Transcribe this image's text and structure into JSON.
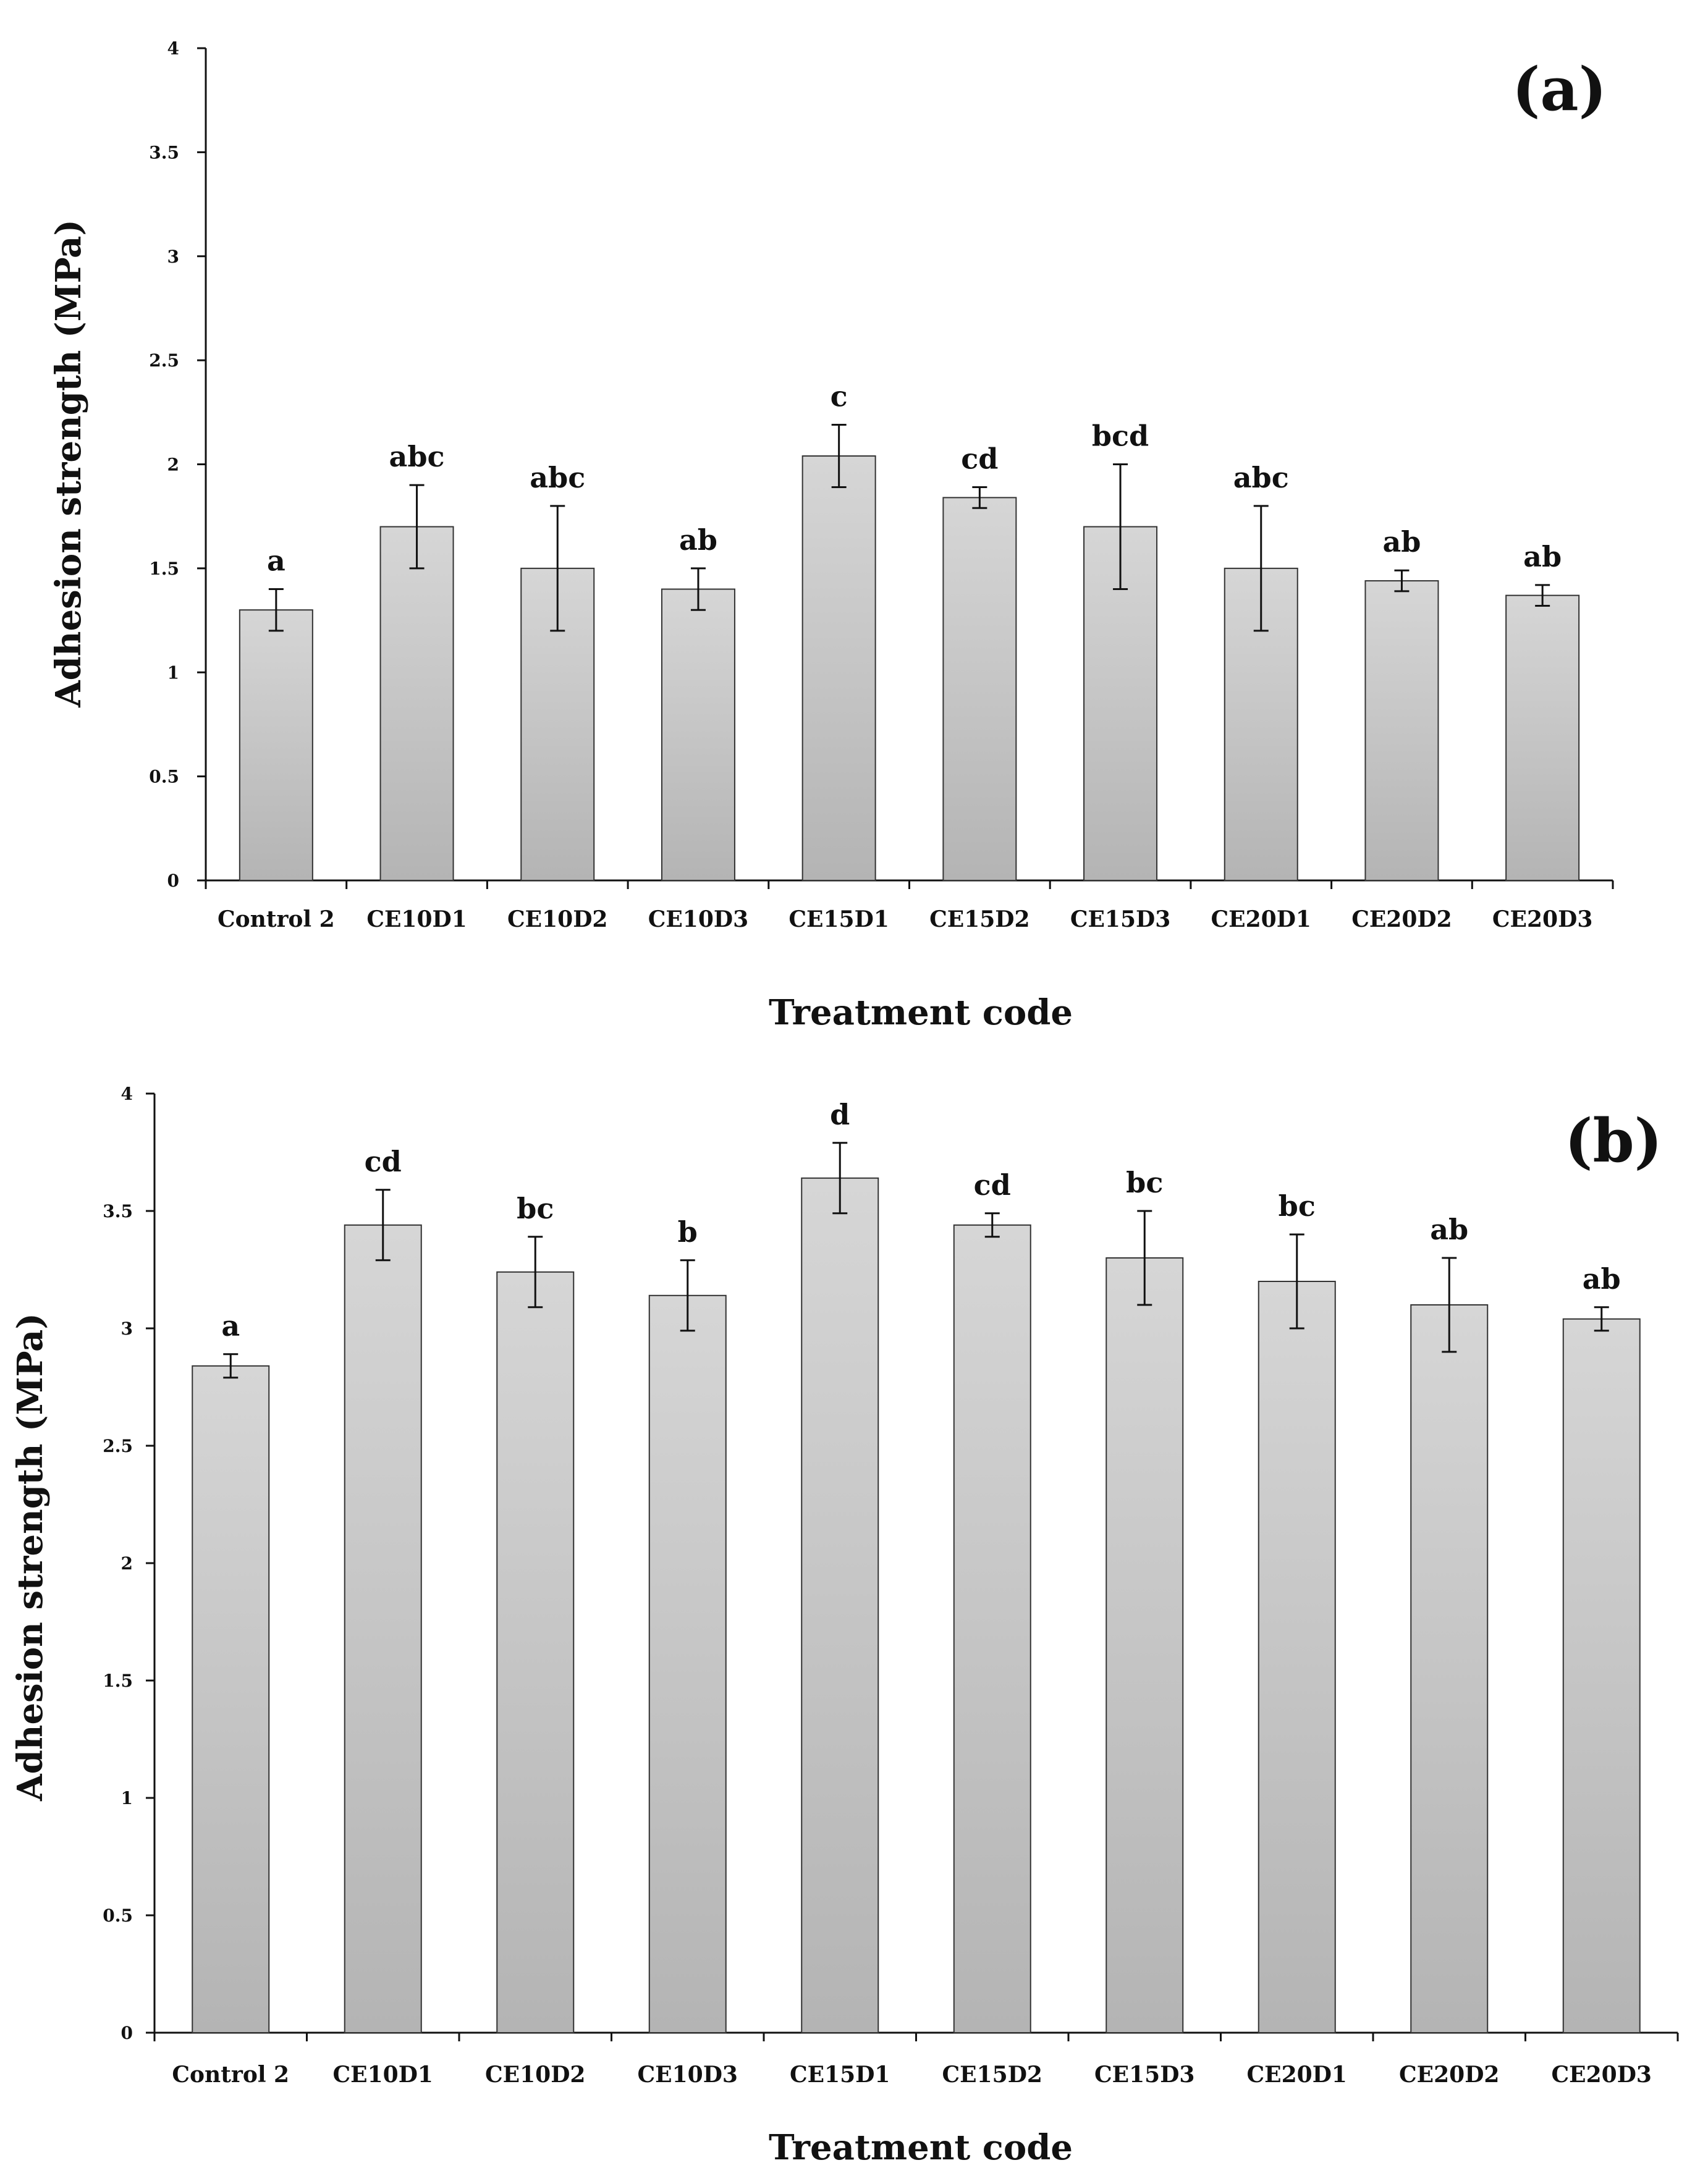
{
  "colors": {
    "bar_fill_top": "#d6d6d6",
    "bar_fill_bottom": "#b4b4b4",
    "bar_stroke": "#333333",
    "axis": "#111111",
    "text": "#111111"
  },
  "chart_data": [
    {
      "type": "bar",
      "panel_label": "(a)",
      "title": "",
      "xlabel": "Treatment code",
      "ylabel": "Adhesion strength  (MPa)",
      "ylim": [
        0,
        4
      ],
      "yticks": [
        "0",
        "0.5",
        "1",
        "1.5",
        "2",
        "2.5",
        "3",
        "3.5",
        "4"
      ],
      "ytick_values": [
        0,
        0.5,
        1,
        1.5,
        2,
        2.5,
        3,
        3.5,
        4
      ],
      "grid": false,
      "legend": "none",
      "categories": [
        "Control 2",
        "CE10D1",
        "CE10D2",
        "CE10D3",
        "CE15D1",
        "CE15D2",
        "CE15D3",
        "CE20D1",
        "CE20D2",
        "CE20D3"
      ],
      "values": [
        1.3,
        1.7,
        1.5,
        1.4,
        2.04,
        1.84,
        1.7,
        1.5,
        1.44,
        1.37
      ],
      "errors": [
        0.1,
        0.2,
        0.3,
        0.1,
        0.15,
        0.05,
        0.3,
        0.3,
        0.05,
        0.05
      ],
      "significance_letters": [
        "a",
        "abc",
        "abc",
        "ab",
        "c",
        "cd",
        "bcd",
        "abc",
        "ab",
        "ab"
      ]
    },
    {
      "type": "bar",
      "panel_label": "(b)",
      "title": "",
      "xlabel": "Treatment code",
      "ylabel": "Adhesion strength  (MPa)",
      "ylim": [
        0,
        4
      ],
      "yticks": [
        "0",
        "0.5",
        "1",
        "1.5",
        "2",
        "2.5",
        "3",
        "3.5",
        "4"
      ],
      "ytick_values": [
        0,
        0.5,
        1,
        1.5,
        2,
        2.5,
        3,
        3.5,
        4
      ],
      "grid": false,
      "legend": "none",
      "categories": [
        "Control 2",
        "CE10D1",
        "CE10D2",
        "CE10D3",
        "CE15D1",
        "CE15D2",
        "CE15D3",
        "CE20D1",
        "CE20D2",
        "CE20D3"
      ],
      "values": [
        2.84,
        3.44,
        3.24,
        3.14,
        3.64,
        3.44,
        3.3,
        3.2,
        3.1,
        3.04
      ],
      "errors": [
        0.05,
        0.15,
        0.15,
        0.15,
        0.15,
        0.05,
        0.2,
        0.2,
        0.2,
        0.05
      ],
      "significance_letters": [
        "a",
        "cd",
        "bc",
        "b",
        "d",
        "cd",
        "bc",
        "bc",
        "ab",
        "ab"
      ]
    }
  ]
}
